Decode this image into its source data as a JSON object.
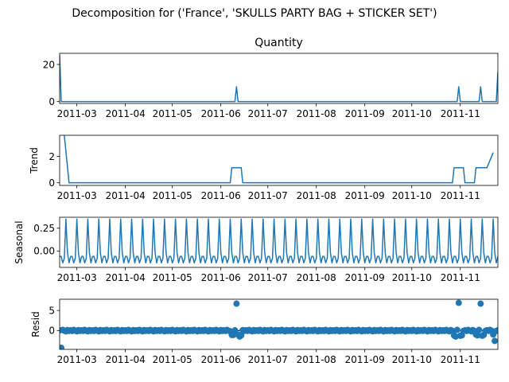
{
  "figure": {
    "suptitle": "Decomposition for ('France', 'SKULLS PARTY BAG + STICKER SET')",
    "series_color": "#1f77b4"
  },
  "chart_data": [
    {
      "type": "line",
      "name": "observed",
      "title": "Quantity",
      "ylabel": "",
      "xlim": [
        "2011-02-18",
        "2011-11-25"
      ],
      "ylim": [
        -1,
        26
      ],
      "yticks": [
        0,
        20
      ],
      "xticks": [
        "2011-03",
        "2011-04",
        "2011-05",
        "2011-06",
        "2011-07",
        "2011-08",
        "2011-09",
        "2011-10",
        "2011-11"
      ],
      "points": [
        [
          "2011-02-18",
          25
        ],
        [
          "2011-02-19",
          0
        ],
        [
          "2011-06-10",
          0
        ],
        [
          "2011-06-11",
          8
        ],
        [
          "2011-06-12",
          0
        ],
        [
          "2011-10-30",
          0
        ],
        [
          "2011-10-31",
          8
        ],
        [
          "2011-11-01",
          0
        ],
        [
          "2011-11-13",
          0
        ],
        [
          "2011-11-14",
          8
        ],
        [
          "2011-11-15",
          0
        ],
        [
          "2011-11-24",
          0
        ],
        [
          "2011-11-25",
          16
        ]
      ]
    },
    {
      "type": "line",
      "name": "trend",
      "title": "",
      "ylabel": "Trend",
      "xlim": [
        "2011-02-18",
        "2011-11-25"
      ],
      "ylim": [
        -0.2,
        3.6
      ],
      "yticks": [
        0,
        2
      ],
      "xticks": [
        "2011-03",
        "2011-04",
        "2011-05",
        "2011-06",
        "2011-07",
        "2011-08",
        "2011-09",
        "2011-10",
        "2011-11"
      ],
      "points": [
        [
          "2011-02-21",
          3.57
        ],
        [
          "2011-02-24",
          0
        ],
        [
          "2011-06-07",
          0
        ],
        [
          "2011-06-08",
          1.14
        ],
        [
          "2011-06-14",
          1.14
        ],
        [
          "2011-06-15",
          0
        ],
        [
          "2011-10-27",
          0
        ],
        [
          "2011-10-28",
          1.14
        ],
        [
          "2011-11-03",
          1.14
        ],
        [
          "2011-11-04",
          0
        ],
        [
          "2011-11-10",
          0
        ],
        [
          "2011-11-11",
          1.14
        ],
        [
          "2011-11-18",
          1.14
        ],
        [
          "2011-11-22",
          2.29
        ]
      ]
    },
    {
      "type": "line",
      "name": "seasonal",
      "title": "",
      "ylabel": "Seasonal",
      "xlim": [
        "2011-02-18",
        "2011-11-25"
      ],
      "ylim": [
        -0.18,
        0.37
      ],
      "yticks": [
        0.25,
        0.0
      ],
      "ytick_labels": [
        "0.25",
        "0.00"
      ],
      "xticks": [
        "2011-03",
        "2011-04",
        "2011-05",
        "2011-06",
        "2011-07",
        "2011-08",
        "2011-09",
        "2011-10",
        "2011-11"
      ],
      "period_days": 7,
      "start": "2011-02-18",
      "end": "2011-11-25",
      "pattern": [
        -0.06,
        -0.06,
        -0.13,
        -0.08,
        0.35,
        -0.02,
        -0.13
      ]
    },
    {
      "type": "scatter",
      "name": "resid",
      "title": "",
      "ylabel": "Resid",
      "xlim": [
        "2011-02-18",
        "2011-11-25"
      ],
      "ylim": [
        -4.7,
        7.8
      ],
      "yticks": [
        5,
        0
      ],
      "xticks": [
        "2011-03",
        "2011-04",
        "2011-05",
        "2011-06",
        "2011-07",
        "2011-08",
        "2011-09",
        "2011-10",
        "2011-11"
      ],
      "zero_line": true,
      "baseline_pattern": [
        0.05,
        -0.1,
        0.15,
        -0.05,
        -0.2,
        0.1,
        -0.1
      ],
      "outliers": [
        [
          "2011-02-19",
          -4.3
        ],
        [
          "2011-06-08",
          -1.1
        ],
        [
          "2011-06-09",
          -1.1
        ],
        [
          "2011-06-11",
          6.7
        ],
        [
          "2011-06-12",
          -1.0
        ],
        [
          "2011-06-13",
          -1.5
        ],
        [
          "2011-06-14",
          -1.2
        ],
        [
          "2011-10-28",
          -1.2
        ],
        [
          "2011-10-29",
          -1.5
        ],
        [
          "2011-10-31",
          6.9
        ],
        [
          "2011-11-01",
          -1.3
        ],
        [
          "2011-11-02",
          -1.2
        ],
        [
          "2011-11-11",
          -1.0
        ],
        [
          "2011-11-12",
          -1.2
        ],
        [
          "2011-11-14",
          6.7
        ],
        [
          "2011-11-15",
          -1.3
        ],
        [
          "2011-11-16",
          -1.1
        ],
        [
          "2011-11-22",
          -1.0
        ],
        [
          "2011-11-23",
          -2.6
        ]
      ]
    }
  ]
}
